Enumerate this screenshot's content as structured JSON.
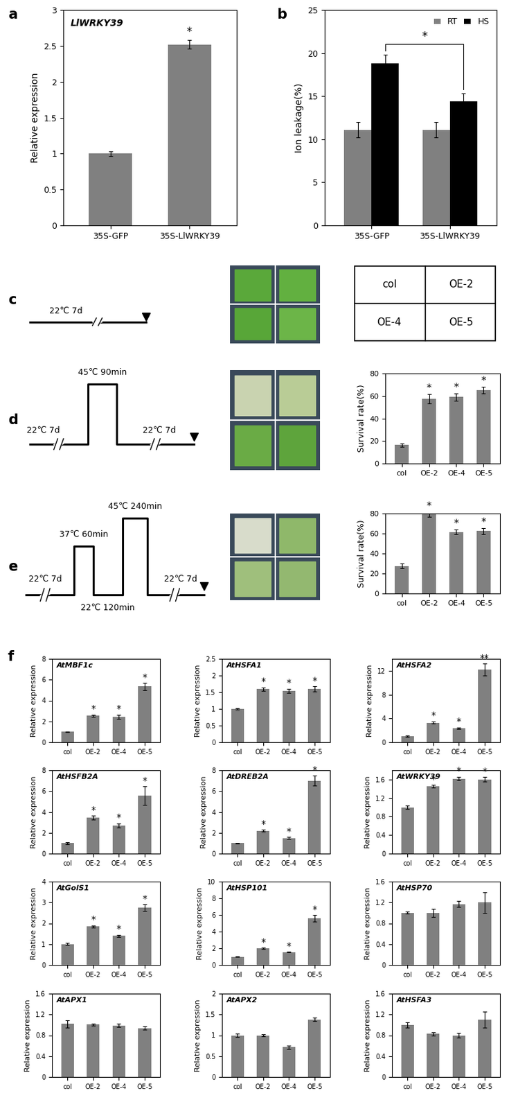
{
  "panel_labels": [
    "a",
    "b",
    "c",
    "d",
    "e",
    "f"
  ],
  "protocols": [
    {
      "panel": "c",
      "steps": [
        "22℃ 7d"
      ]
    },
    {
      "panel": "d",
      "steps": [
        "22℃ 7d",
        "45℃ 90min",
        "22℃ 7d"
      ]
    },
    {
      "panel": "e",
      "steps": [
        "22℃ 7d",
        "37℃ 60min",
        "22℃ 120min",
        "45℃ 240min",
        "22℃ 7d"
      ]
    }
  ],
  "layout_key": [
    "col",
    "OE-2",
    "OE-4",
    "OE-5"
  ],
  "chart_data": [
    {
      "type": "bar",
      "panel": "a",
      "title": "LlWRKY39",
      "y_label": "Relative expression",
      "categories": [
        "35S-GFP",
        "35S-LlWRKY39"
      ],
      "values": [
        1.0,
        2.52
      ],
      "errors": [
        0.03,
        0.06
      ],
      "significance": [
        null,
        "*"
      ],
      "color": "#808080",
      "ylim": [
        0,
        3
      ],
      "yticks": [
        0,
        0.5,
        1,
        1.5,
        2,
        2.5,
        3
      ],
      "grid": false
    },
    {
      "type": "bar",
      "panel": "b",
      "y_label": "Ion leakage(%)",
      "categories": [
        "35S-GFP",
        "35S-LlWRKY39"
      ],
      "series": [
        {
          "name": "RT",
          "color": "#808080",
          "values": [
            11.1,
            11.1
          ],
          "errors": [
            0.9,
            0.9
          ]
        },
        {
          "name": "HS",
          "color": "#000000",
          "values": [
            18.8,
            14.4
          ],
          "errors": [
            1.0,
            0.9
          ]
        }
      ],
      "annotations": [
        {
          "text": "*",
          "series": "HS",
          "categories": [
            "35S-GFP",
            "35S-LlWRKY39"
          ]
        }
      ],
      "legend": "upper right",
      "ylim": [
        0,
        25
      ],
      "yticks": [
        0,
        5,
        10,
        15,
        20,
        25
      ],
      "grid": false
    },
    {
      "type": "bar",
      "panel": "d",
      "y_label": "Survival rate(%)",
      "categories": [
        "col",
        "OE-2",
        "OE-4",
        "OE-5"
      ],
      "values": [
        16.5,
        57.5,
        59,
        65
      ],
      "errors": [
        1.5,
        4,
        3,
        3
      ],
      "significance": [
        null,
        "*",
        "*",
        "*"
      ],
      "color": "#808080",
      "ylim": [
        0,
        80
      ],
      "yticks": [
        0,
        20,
        40,
        60,
        80
      ],
      "grid": false
    },
    {
      "type": "bar",
      "panel": "e",
      "y_label": "Survival rate(%)",
      "categories": [
        "col",
        "OE-2",
        "OE-4",
        "OE-5"
      ],
      "values": [
        27.5,
        79,
        61.5,
        62.5
      ],
      "errors": [
        2.5,
        2.5,
        2.5,
        3
      ],
      "significance": [
        null,
        "*",
        "*",
        "*"
      ],
      "color": "#808080",
      "ylim": [
        0,
        80
      ],
      "yticks": [
        0,
        20,
        40,
        60,
        80
      ],
      "grid": false
    },
    {
      "type": "bar",
      "panel": "f",
      "title": "AtMBF1c",
      "y_label": "Relative expression",
      "categories": [
        "col",
        "OE-2",
        "OE-4",
        "OE-5"
      ],
      "values": [
        1,
        2.55,
        2.45,
        5.35
      ],
      "errors": [
        0.05,
        0.1,
        0.2,
        0.35
      ],
      "significance": [
        null,
        "*",
        "*",
        "*"
      ],
      "color": "#808080",
      "ylim": [
        0,
        8
      ],
      "yticks": [
        0,
        2,
        4,
        6,
        8
      ],
      "grid": false
    },
    {
      "type": "bar",
      "panel": "f",
      "title": "AtHSFA1",
      "y_label": "Relative expression",
      "categories": [
        "col",
        "OE-2",
        "OE-4",
        "OE-5"
      ],
      "values": [
        1,
        1.6,
        1.55,
        1.6
      ],
      "errors": [
        0.02,
        0.05,
        0.06,
        0.08
      ],
      "significance": [
        null,
        "*",
        "*",
        "*"
      ],
      "color": "#808080",
      "ylim": [
        0,
        2.5
      ],
      "yticks": [
        0,
        0.5,
        1,
        1.5,
        2,
        2.5
      ],
      "grid": false
    },
    {
      "type": "bar",
      "panel": "f",
      "title": "AtHSFA2",
      "y_label": "Relative expression",
      "categories": [
        "col",
        "OE-2",
        "OE-4",
        "OE-5"
      ],
      "values": [
        1,
        3.3,
        2.35,
        12.2
      ],
      "errors": [
        0.1,
        0.2,
        0.15,
        1.0
      ],
      "significance": [
        null,
        "*",
        "*",
        "**"
      ],
      "color": "#808080",
      "ylim": [
        0,
        14
      ],
      "yticks": [
        0,
        4,
        8,
        12
      ],
      "grid": false
    },
    {
      "type": "bar",
      "panel": "f",
      "title": "AtHSFB2A",
      "y_label": "Relative expression",
      "categories": [
        "col",
        "OE-2",
        "OE-4",
        "OE-5"
      ],
      "values": [
        1,
        3.45,
        2.7,
        5.55
      ],
      "errors": [
        0.08,
        0.2,
        0.2,
        0.9
      ],
      "significance": [
        null,
        "*",
        "*",
        "*"
      ],
      "color": "#808080",
      "ylim": [
        0,
        8
      ],
      "yticks": [
        0,
        2,
        4,
        6,
        8
      ],
      "grid": false
    },
    {
      "type": "bar",
      "panel": "f",
      "title": "AtDREB2A",
      "y_label": "Relative expression",
      "categories": [
        "col",
        "OE-2",
        "OE-4",
        "OE-5"
      ],
      "values": [
        1,
        2.2,
        1.5,
        7.0
      ],
      "errors": [
        0.05,
        0.1,
        0.1,
        0.5
      ],
      "significance": [
        null,
        "*",
        "*",
        "*"
      ],
      "color": "#808080",
      "ylim": [
        0,
        8
      ],
      "yticks": [
        0,
        2,
        4,
        6,
        8
      ],
      "grid": false
    },
    {
      "type": "bar",
      "panel": "f",
      "title": "AtWRKY39",
      "y_label": "Relative expression",
      "categories": [
        "col",
        "OE-2",
        "OE-4",
        "OE-5"
      ],
      "values": [
        1,
        1.45,
        1.62,
        1.6
      ],
      "errors": [
        0.03,
        0.03,
        0.04,
        0.05
      ],
      "significance": [
        null,
        "*",
        "*",
        "*"
      ],
      "color": "#808080",
      "ylim": [
        0,
        1.8
      ],
      "yticks": [
        0,
        0.4,
        0.8,
        1.2,
        1.6
      ],
      "grid": false
    },
    {
      "type": "bar",
      "panel": "f",
      "title": "AtGolS1",
      "y_label": "Relative expression",
      "categories": [
        "col",
        "OE-2",
        "OE-4",
        "OE-5"
      ],
      "values": [
        1,
        1.85,
        1.4,
        2.75
      ],
      "errors": [
        0.05,
        0.05,
        0.05,
        0.15
      ],
      "significance": [
        null,
        "*",
        "*",
        "*"
      ],
      "color": "#808080",
      "ylim": [
        0,
        4
      ],
      "yticks": [
        0,
        1,
        2,
        3,
        4
      ],
      "grid": false
    },
    {
      "type": "bar",
      "panel": "f",
      "title": "AtHSP101",
      "y_label": "Relative expression",
      "categories": [
        "col",
        "OE-2",
        "OE-4",
        "OE-5"
      ],
      "values": [
        1,
        2,
        1.55,
        5.6
      ],
      "errors": [
        0.05,
        0.05,
        0.05,
        0.4
      ],
      "significance": [
        null,
        "*",
        "*",
        "*"
      ],
      "color": "#808080",
      "ylim": [
        0,
        10
      ],
      "yticks": [
        0,
        2,
        4,
        6,
        8,
        10
      ],
      "grid": false
    },
    {
      "type": "bar",
      "panel": "f",
      "title": "AtHSP70",
      "y_label": "Relative expression",
      "categories": [
        "col",
        "OE-2",
        "OE-4",
        "OE-5"
      ],
      "values": [
        1,
        1.0,
        1.17,
        1.2
      ],
      "errors": [
        0.02,
        0.08,
        0.06,
        0.2
      ],
      "color": "#808080",
      "ylim": [
        0,
        1.6
      ],
      "yticks": [
        0,
        0.4,
        0.8,
        1.2,
        1.6
      ],
      "grid": false
    },
    {
      "type": "bar",
      "panel": "f",
      "title": "AtAPX1",
      "y_label": "Relative expression",
      "categories": [
        "col",
        "OE-2",
        "OE-4",
        "OE-5"
      ],
      "values": [
        1.02,
        1.01,
        0.99,
        0.94
      ],
      "errors": [
        0.07,
        0.02,
        0.03,
        0.03
      ],
      "color": "#808080",
      "ylim": [
        0,
        1.6
      ],
      "yticks": [
        0,
        0.4,
        0.8,
        1.2,
        1.6
      ],
      "grid": false
    },
    {
      "type": "bar",
      "panel": "f",
      "title": "AtAPX2",
      "y_label": "Relative expression",
      "categories": [
        "col",
        "OE-2",
        "OE-4",
        "OE-5"
      ],
      "values": [
        1,
        1,
        0.72,
        1.38
      ],
      "errors": [
        0.04,
        0.02,
        0.04,
        0.04
      ],
      "color": "#808080",
      "ylim": [
        0,
        2
      ],
      "yticks": [
        0,
        0.5,
        1,
        1.5,
        2
      ],
      "grid": false
    },
    {
      "type": "bar",
      "panel": "f",
      "title": "AtHSFA3",
      "y_label": "Relative expression",
      "categories": [
        "col",
        "OE-2",
        "OE-4",
        "OE-5"
      ],
      "values": [
        1,
        0.83,
        0.8,
        1.1
      ],
      "errors": [
        0.05,
        0.03,
        0.05,
        0.15
      ],
      "color": "#808080",
      "ylim": [
        0,
        1.6
      ],
      "yticks": [
        0,
        0.4,
        0.8,
        1.2,
        1.6
      ],
      "grid": false
    }
  ]
}
